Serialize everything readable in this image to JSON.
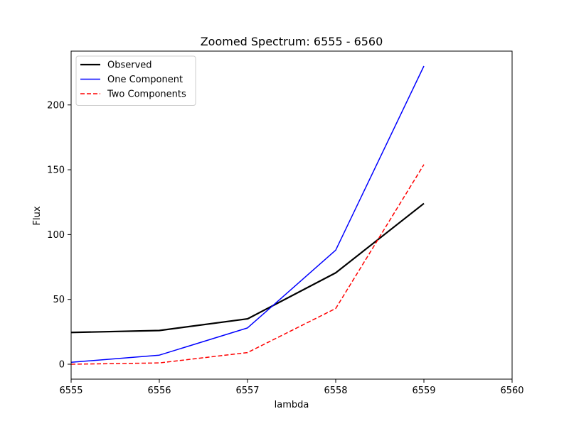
{
  "chart_data": {
    "type": "line",
    "title": "Zoomed Spectrum: 6555 - 6560",
    "xlabel": "lambda",
    "ylabel": "Flux",
    "xlim": [
      6555,
      6560
    ],
    "ylim": [
      -11.5,
      241.5
    ],
    "xticks": [
      "6555",
      "6556",
      "6557",
      "6558",
      "6559",
      "6560"
    ],
    "yticks": [
      "0",
      "50",
      "100",
      "150",
      "200"
    ],
    "grid": false,
    "legend_position": "upper-left",
    "x": [
      6555,
      6556,
      6557,
      6558,
      6559
    ],
    "series": [
      {
        "name": "Observed",
        "values": [
          24.5,
          26,
          35,
          70.5,
          124
        ],
        "color": "#000000",
        "style": "solid"
      },
      {
        "name": "One Component",
        "values": [
          1.5,
          7,
          28,
          88,
          230
        ],
        "color": "#0000ff",
        "style": "solid"
      },
      {
        "name": "Two Components",
        "values": [
          0,
          1,
          9,
          43,
          154
        ],
        "color": "#ff0000",
        "style": "dashed"
      }
    ]
  }
}
